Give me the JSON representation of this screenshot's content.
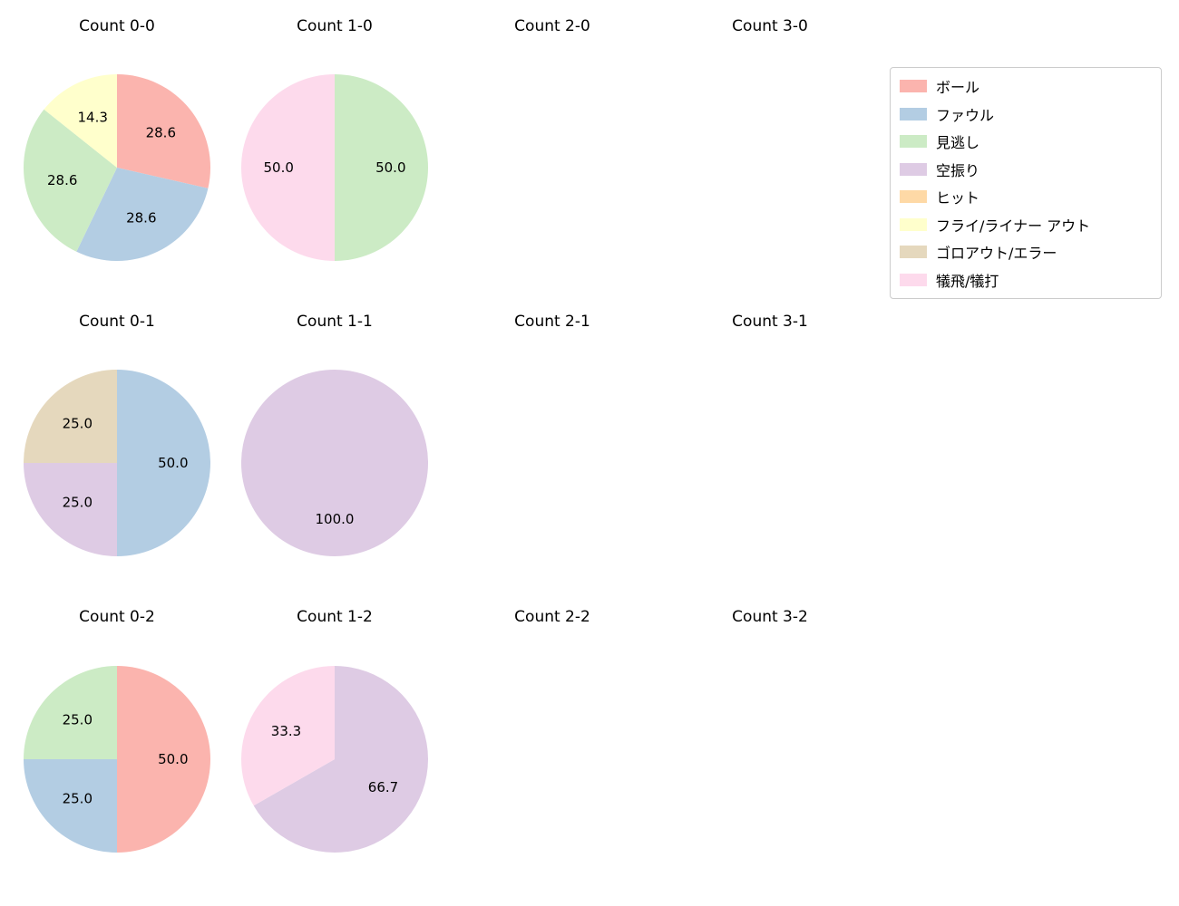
{
  "figure": {
    "background": "#ffffff"
  },
  "legend": {
    "items": [
      {
        "label": "ボール",
        "color": "#fbb4ae"
      },
      {
        "label": "ファウル",
        "color": "#b3cde3"
      },
      {
        "label": "見逃し",
        "color": "#ccebc5"
      },
      {
        "label": "空振り",
        "color": "#decbe4"
      },
      {
        "label": "ヒット",
        "color": "#fed9a6"
      },
      {
        "label": "フライ/ライナー アウト",
        "color": "#ffffcc"
      },
      {
        "label": "ゴロアウト/エラー",
        "color": "#e5d8bd"
      },
      {
        "label": "犠飛/犠打",
        "color": "#fddaec"
      }
    ]
  },
  "chart_data": [
    {
      "type": "pie",
      "title": "Count 0-0",
      "start_angle": 90,
      "direction": "clockwise",
      "pct_distance": 0.6,
      "slices": [
        {
          "label": "ボール",
          "value": 28.6,
          "pct": "28.6",
          "color": "#fbb4ae"
        },
        {
          "label": "ファウル",
          "value": 28.6,
          "pct": "28.6",
          "color": "#b3cde3"
        },
        {
          "label": "見逃し",
          "value": 28.6,
          "pct": "28.6",
          "color": "#ccebc5"
        },
        {
          "label": "フライ/ライナー アウト",
          "value": 14.3,
          "pct": "14.3",
          "color": "#ffffcc"
        }
      ]
    },
    {
      "type": "pie",
      "title": "Count 1-0",
      "start_angle": 90,
      "direction": "clockwise",
      "pct_distance": 0.6,
      "slices": [
        {
          "label": "見逃し",
          "value": 50.0,
          "pct": "50.0",
          "color": "#ccebc5"
        },
        {
          "label": "犠飛/犠打",
          "value": 50.0,
          "pct": "50.0",
          "color": "#fddaec"
        }
      ]
    },
    {
      "type": "pie",
      "title": "Count 2-0",
      "slices": []
    },
    {
      "type": "pie",
      "title": "Count 3-0",
      "slices": []
    },
    {
      "type": "pie",
      "title": "Count 0-1",
      "start_angle": 90,
      "direction": "clockwise",
      "pct_distance": 0.6,
      "slices": [
        {
          "label": "ファウル",
          "value": 50.0,
          "pct": "50.0",
          "color": "#b3cde3"
        },
        {
          "label": "空振り",
          "value": 25.0,
          "pct": "25.0",
          "color": "#decbe4"
        },
        {
          "label": "ゴロアウト/エラー",
          "value": 25.0,
          "pct": "25.0",
          "color": "#e5d8bd"
        }
      ]
    },
    {
      "type": "pie",
      "title": "Count 1-1",
      "start_angle": 90,
      "direction": "clockwise",
      "pct_distance": 0.6,
      "slices": [
        {
          "label": "空振り",
          "value": 100.0,
          "pct": "100.0",
          "color": "#decbe4"
        }
      ]
    },
    {
      "type": "pie",
      "title": "Count 2-1",
      "slices": []
    },
    {
      "type": "pie",
      "title": "Count 3-1",
      "slices": []
    },
    {
      "type": "pie",
      "title": "Count 0-2",
      "start_angle": 90,
      "direction": "clockwise",
      "pct_distance": 0.6,
      "slices": [
        {
          "label": "ボール",
          "value": 50.0,
          "pct": "50.0",
          "color": "#fbb4ae"
        },
        {
          "label": "ファウル",
          "value": 25.0,
          "pct": "25.0",
          "color": "#b3cde3"
        },
        {
          "label": "見逃し",
          "value": 25.0,
          "pct": "25.0",
          "color": "#ccebc5"
        }
      ]
    },
    {
      "type": "pie",
      "title": "Count 1-2",
      "start_angle": 90,
      "direction": "clockwise",
      "pct_distance": 0.6,
      "slices": [
        {
          "label": "空振り",
          "value": 66.7,
          "pct": "66.7",
          "color": "#decbe4"
        },
        {
          "label": "犠飛/犠打",
          "value": 33.3,
          "pct": "33.3",
          "color": "#fddaec"
        }
      ]
    },
    {
      "type": "pie",
      "title": "Count 2-2",
      "slices": []
    },
    {
      "type": "pie",
      "title": "Count 3-2",
      "slices": []
    }
  ]
}
